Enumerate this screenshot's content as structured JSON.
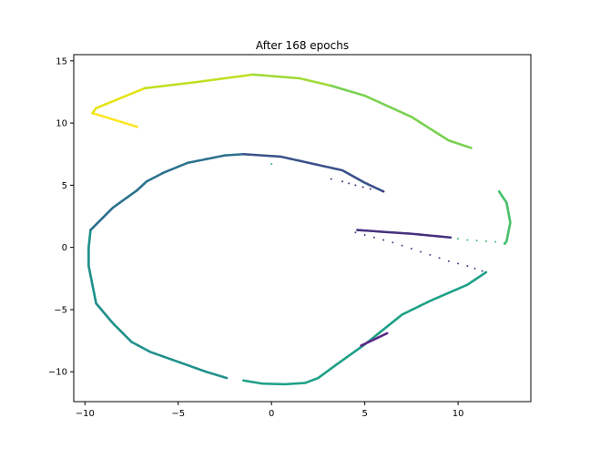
{
  "chart_data": {
    "type": "scatter",
    "title": "After 168 epochs",
    "xlabel": "",
    "ylabel": "",
    "xlim": [
      -10.6,
      13.9
    ],
    "ylim": [
      -12.4,
      15.5
    ],
    "grid": false,
    "x_ticks": [
      -10,
      -5,
      0,
      5,
      10
    ],
    "y_ticks": [
      -10,
      -5,
      0,
      5,
      10,
      15
    ],
    "x_tick_labels": [
      "−10",
      "−5",
      "0",
      "5",
      "10"
    ],
    "y_tick_labels": [
      "−10",
      "−5",
      "0",
      "5",
      "10",
      "15"
    ],
    "colormap": "viridis",
    "segments": [
      {
        "color": "#fde725",
        "points": [
          [
            -7.2,
            9.7
          ],
          [
            -9.6,
            10.8
          ]
        ]
      },
      {
        "color": "#e4e419",
        "points": [
          [
            -9.6,
            10.8
          ],
          [
            -9.4,
            11.2
          ],
          [
            -6.8,
            12.8
          ]
        ]
      },
      {
        "color": "#c2df23",
        "points": [
          [
            -6.8,
            12.8
          ],
          [
            -4.0,
            13.3
          ],
          [
            -1.0,
            13.9
          ]
        ]
      },
      {
        "color": "#a0da39",
        "points": [
          [
            -1.0,
            13.9
          ],
          [
            1.5,
            13.6
          ],
          [
            3.2,
            13.0
          ]
        ]
      },
      {
        "color": "#7ad151",
        "points": [
          [
            3.2,
            13.0
          ],
          [
            5.0,
            12.2
          ],
          [
            7.5,
            10.5
          ],
          [
            9.5,
            8.6
          ],
          [
            10.7,
            8.0
          ]
        ]
      },
      {
        "color": "#4ac16d",
        "points": [
          [
            12.2,
            4.5
          ],
          [
            12.6,
            3.6
          ],
          [
            12.8,
            2.0
          ],
          [
            12.6,
            0.5
          ],
          [
            12.5,
            0.3
          ]
        ]
      },
      {
        "color": "#40bd72",
        "points": [
          [
            12.5,
            0.35
          ],
          [
            12.0,
            0.45
          ],
          [
            11.5,
            0.5
          ],
          [
            11.0,
            0.55
          ],
          [
            10.5,
            0.6
          ],
          [
            10.0,
            0.7
          ]
        ],
        "dotted": true
      },
      {
        "color": "#1fa187",
        "points": [
          [
            11.5,
            -2.0
          ],
          [
            10.5,
            -3.0
          ],
          [
            8.5,
            -4.3
          ],
          [
            7.0,
            -5.4
          ],
          [
            5.0,
            -7.8
          ],
          [
            3.5,
            -9.4
          ],
          [
            2.5,
            -10.5
          ],
          [
            1.8,
            -10.9
          ],
          [
            0.7,
            -11.0
          ],
          [
            -0.5,
            -10.95
          ],
          [
            -1.5,
            -10.7
          ]
        ]
      },
      {
        "color": "#21918c",
        "points": [
          [
            -2.4,
            -10.5
          ],
          [
            -3.5,
            -10.0
          ],
          [
            -5.0,
            -9.2
          ],
          [
            -6.5,
            -8.4
          ],
          [
            -7.5,
            -7.6
          ],
          [
            -8.5,
            -6.1
          ],
          [
            -9.4,
            -4.5
          ],
          [
            -9.6,
            -3.0
          ],
          [
            -9.8,
            -1.5
          ],
          [
            -9.8,
            0.0
          ],
          [
            -9.7,
            1.4
          ]
        ]
      },
      {
        "color": "#2c728e",
        "points": [
          [
            -9.7,
            1.4
          ],
          [
            -8.5,
            3.2
          ],
          [
            -7.2,
            4.6
          ],
          [
            -6.7,
            5.3
          ],
          [
            -5.8,
            6.0
          ],
          [
            -4.5,
            6.8
          ],
          [
            -2.5,
            7.4
          ],
          [
            -1.5,
            7.5
          ]
        ]
      },
      {
        "color": "#3b528b",
        "points": [
          [
            -1.5,
            7.5
          ],
          [
            0.5,
            7.3
          ],
          [
            2.0,
            6.8
          ],
          [
            3.8,
            6.2
          ],
          [
            5.0,
            5.2
          ],
          [
            6.0,
            4.5
          ]
        ]
      },
      {
        "color": "#472d7b",
        "points": [
          [
            6.0,
            4.5
          ],
          [
            5.3,
            4.7
          ],
          [
            4.5,
            5.0
          ],
          [
            3.8,
            5.3
          ],
          [
            3.2,
            5.5
          ]
        ],
        "dotted": true
      },
      {
        "color": "#46327e",
        "points": [
          [
            4.6,
            1.4
          ],
          [
            6.0,
            1.25
          ],
          [
            7.5,
            1.1
          ],
          [
            9.6,
            0.8
          ]
        ]
      },
      {
        "color": "#3e4989",
        "points": [
          [
            4.5,
            1.2
          ],
          [
            5.5,
            0.8
          ],
          [
            6.5,
            0.4
          ],
          [
            7.5,
            -0.1
          ],
          [
            8.5,
            -0.6
          ],
          [
            9.5,
            -1.1
          ],
          [
            10.5,
            -1.5
          ],
          [
            11.3,
            -1.9
          ]
        ],
        "dotted": true
      },
      {
        "color": "#35b779",
        "points": [
          [
            0.0,
            6.7
          ]
        ],
        "dotted": true
      },
      {
        "color": "#5c2a87",
        "points": [
          [
            4.8,
            -7.9
          ],
          [
            6.2,
            -6.9
          ]
        ]
      }
    ]
  }
}
